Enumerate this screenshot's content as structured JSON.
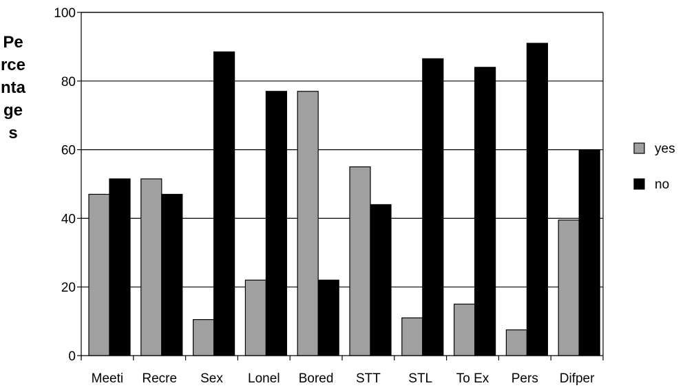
{
  "chart_data": {
    "type": "bar",
    "ylabel": "Percentages",
    "xlabel": "",
    "title": "",
    "categories": [
      "Meeti",
      "Recre",
      "Sex",
      "Lonel",
      "Bored",
      "STT",
      "STL",
      "To Ex",
      "Pers",
      "Difper"
    ],
    "series": [
      {
        "name": "yes",
        "color": "#a0a0a0",
        "values": [
          47,
          51.5,
          10.5,
          22,
          77,
          55,
          11,
          15,
          7.5,
          39.5
        ]
      },
      {
        "name": "no",
        "color": "#000000",
        "values": [
          51.5,
          47,
          88.5,
          77,
          22,
          44,
          86.5,
          84,
          91,
          60
        ]
      }
    ],
    "ylim": [
      0,
      100
    ],
    "yticks": [
      "0",
      "20",
      "40",
      "60",
      "80",
      "100"
    ],
    "grid": true,
    "legend_position": "right"
  }
}
